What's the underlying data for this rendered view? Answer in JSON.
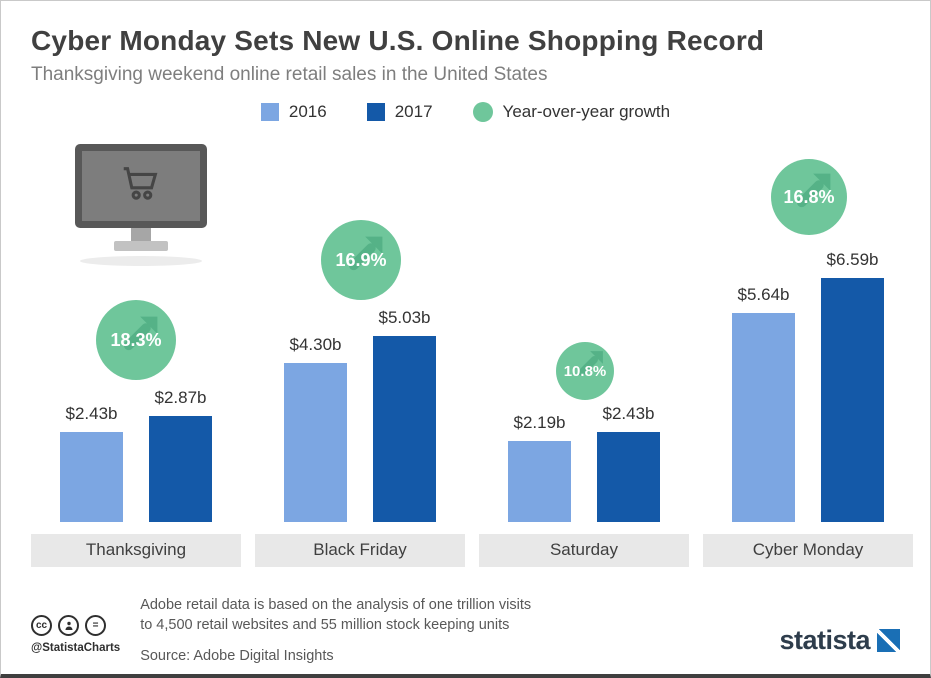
{
  "chart_data": {
    "type": "bar",
    "title": "Cyber Monday Sets New U.S. Online Shopping Record",
    "subtitle": "Thanksgiving weekend online retail sales in the United States",
    "unit": "USD billions",
    "categories": [
      "Thanksgiving",
      "Black Friday",
      "Saturday",
      "Cyber Monday"
    ],
    "series": [
      {
        "name": "2016",
        "color": "#7CA6E2",
        "values": [
          2.43,
          4.3,
          2.19,
          5.64
        ],
        "labels": [
          "$2.43b",
          "$4.30b",
          "$2.19b",
          "$5.64b"
        ]
      },
      {
        "name": "2017",
        "color": "#1459A8",
        "values": [
          2.87,
          5.03,
          2.43,
          6.59
        ],
        "labels": [
          "$2.87b",
          "$5.03b",
          "$2.43b",
          "$6.59b"
        ]
      }
    ],
    "growth": {
      "name": "Year-over-year growth",
      "color": "#6FC69B",
      "values": [
        18.3,
        16.9,
        10.8,
        16.8
      ],
      "labels": [
        "18.3%",
        "16.9%",
        "10.8%",
        "16.8%"
      ]
    },
    "ylim": [
      0,
      7
    ],
    "grid": false,
    "legend_position": "top"
  },
  "footer": {
    "note_line1": "Adobe retail data is based on the analysis of one trillion visits",
    "note_line2": "to 4,500 retail websites and 55 million stock keeping units",
    "source": "Source: Adobe Digital Insights",
    "credit": "@StatistaCharts",
    "brand": "statista"
  },
  "icons": {
    "cc": "cc",
    "no_derivs": "="
  },
  "colors": {
    "bar_2016": "#7CA6E2",
    "bar_2017": "#1459A8",
    "growth_circle": "#6FC69B",
    "growth_arrow": "#55B287",
    "title_text": "#404040",
    "category_box": "#e8e8e8",
    "brand_blue": "#1a6fb5"
  }
}
